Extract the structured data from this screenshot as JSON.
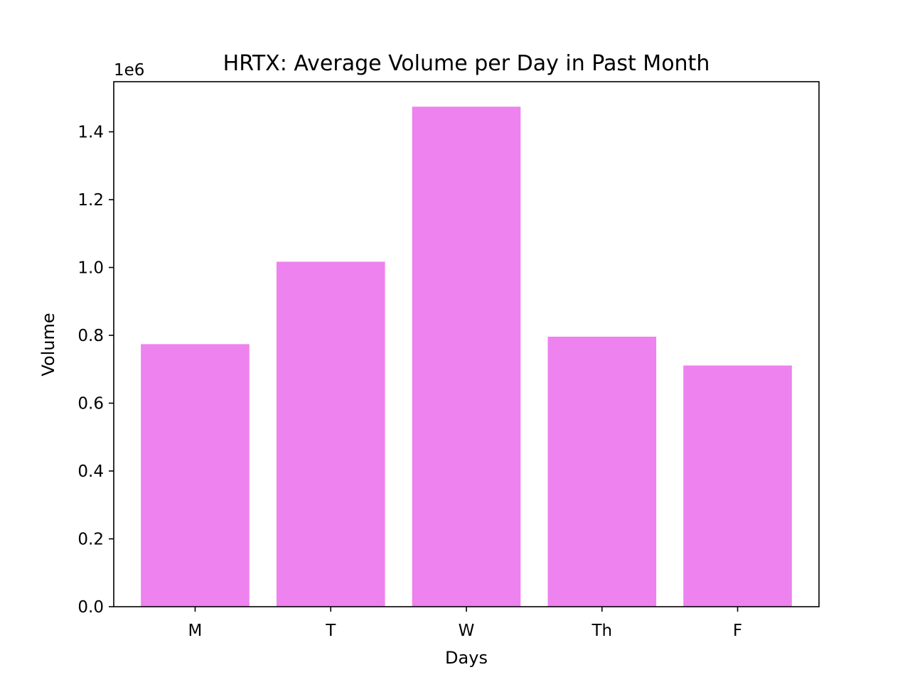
{
  "chart_data": {
    "type": "bar",
    "title": "HRTX: Average Volume per Day in Past Month",
    "xlabel": "Days",
    "ylabel": "Volume",
    "offset_label": "1e6",
    "categories": [
      "M",
      "T",
      "W",
      "Th",
      "F"
    ],
    "values": [
      774000,
      1017000,
      1474000,
      796000,
      711000
    ],
    "y_ticks": [
      0,
      200000,
      400000,
      600000,
      800000,
      1000000,
      1200000,
      1400000
    ],
    "y_tick_labels": [
      "0.0",
      "0.2",
      "0.4",
      "0.6",
      "0.8",
      "1.0",
      "1.2",
      "1.4"
    ],
    "ylim": [
      0,
      1547700
    ],
    "bar_color": "#ee82ee",
    "grid": false,
    "legend": "none"
  }
}
